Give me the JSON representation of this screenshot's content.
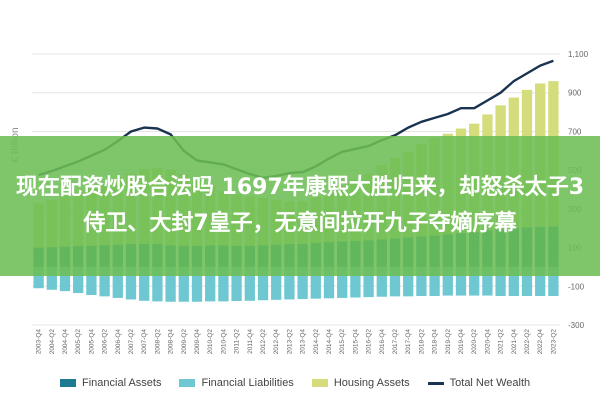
{
  "banner": {
    "text": "现在配资炒股合法吗 1697年康熙大胜归来，却怒杀太子3侍卫、大封7皇子，无意间拉开九子夺嫡序幕"
  },
  "colors": {
    "financial_assets": "#1f7a90",
    "financial_liabilities": "#6fc7d2",
    "housing_assets": "#d4dc7c",
    "total_net_wealth": "#1a3350",
    "banner": "#6cbe54",
    "grid": "#e6e6e6",
    "axis_text": "#666666"
  },
  "legend": [
    {
      "label": "Financial Assets",
      "key": "financial_assets",
      "shape": "box"
    },
    {
      "label": "Financial Liabilities",
      "key": "financial_liabilities",
      "shape": "box"
    },
    {
      "label": "Housing Assets",
      "key": "housing_assets",
      "shape": "box"
    },
    {
      "label": "Total Net Wealth",
      "key": "total_net_wealth",
      "shape": "line"
    }
  ],
  "chart_data": {
    "type": "bar",
    "stacked": true,
    "ylabel": "€ Billion",
    "ylim": [
      -300,
      1250
    ],
    "yticks": [
      -300,
      -100,
      100,
      300,
      500,
      700,
      900,
      1100
    ],
    "ytick_labels": [
      "-300",
      "-100",
      "100",
      "300",
      "500",
      "700",
      "900",
      "1,100"
    ],
    "y_axis_position": "right",
    "grid": true,
    "legend_position": "bottom",
    "categories": [
      "2003-Q4",
      "2004-Q2",
      "2004-Q4",
      "2005-Q2",
      "2005-Q4",
      "2006-Q2",
      "2006-Q4",
      "2007-Q2",
      "2007-Q4",
      "2008-Q2",
      "2008-Q4",
      "2009-Q2",
      "2009-Q4",
      "2010-Q2",
      "2010-Q4",
      "2011-Q2",
      "2011-Q4",
      "2012-Q2",
      "2012-Q4",
      "2013-Q2",
      "2013-Q4",
      "2014-Q2",
      "2014-Q4",
      "2015-Q2",
      "2015-Q4",
      "2016-Q2",
      "2016-Q4",
      "2017-Q2",
      "2017-Q4",
      "2018-Q2",
      "2018-Q4",
      "2019-Q2",
      "2019-Q4",
      "2020-Q2",
      "2020-Q4",
      "2021-Q2",
      "2021-Q4",
      "2022-Q2",
      "2022-Q4",
      "2023-Q2"
    ],
    "series": [
      {
        "name": "Financial Assets",
        "key": "financial_assets",
        "kind": "bar",
        "values": [
          100,
          102,
          105,
          108,
          110,
          113,
          115,
          118,
          120,
          118,
          112,
          108,
          110,
          112,
          112,
          110,
          110,
          112,
          115,
          118,
          120,
          125,
          128,
          132,
          135,
          138,
          142,
          148,
          152,
          158,
          162,
          168,
          175,
          180,
          188,
          195,
          200,
          205,
          208,
          210
        ]
      },
      {
        "name": "Housing Assets",
        "key": "housing_assets",
        "kind": "bar",
        "values": [
          230,
          245,
          262,
          278,
          298,
          320,
          345,
          365,
          385,
          393,
          390,
          372,
          335,
          305,
          280,
          265,
          255,
          245,
          232,
          222,
          220,
          235,
          252,
          285,
          315,
          345,
          385,
          415,
          445,
          478,
          505,
          520,
          540,
          560,
          600,
          640,
          675,
          710,
          740,
          750
        ]
      },
      {
        "name": "Financial Liabilities",
        "key": "financial_liabilities",
        "kind": "bar",
        "values": [
          -110,
          -118,
          -125,
          -135,
          -145,
          -152,
          -160,
          -168,
          -175,
          -178,
          -180,
          -180,
          -180,
          -178,
          -178,
          -176,
          -175,
          -172,
          -170,
          -168,
          -166,
          -164,
          -162,
          -160,
          -158,
          -156,
          -154,
          -152,
          -152,
          -150,
          -150,
          -148,
          -148,
          -148,
          -148,
          -150,
          -150,
          -150,
          -150,
          -150
        ]
      },
      {
        "name": "Total Net Wealth",
        "key": "total_net_wealth",
        "kind": "line",
        "values": [
          475,
          495,
          520,
          545,
          575,
          605,
          650,
          700,
          720,
          715,
          685,
          600,
          550,
          540,
          530,
          505,
          480,
          460,
          470,
          485,
          490,
          520,
          560,
          595,
          610,
          625,
          655,
          680,
          720,
          750,
          770,
          790,
          820,
          820,
          860,
          900,
          960,
          1000,
          1040,
          1065
        ]
      }
    ]
  }
}
